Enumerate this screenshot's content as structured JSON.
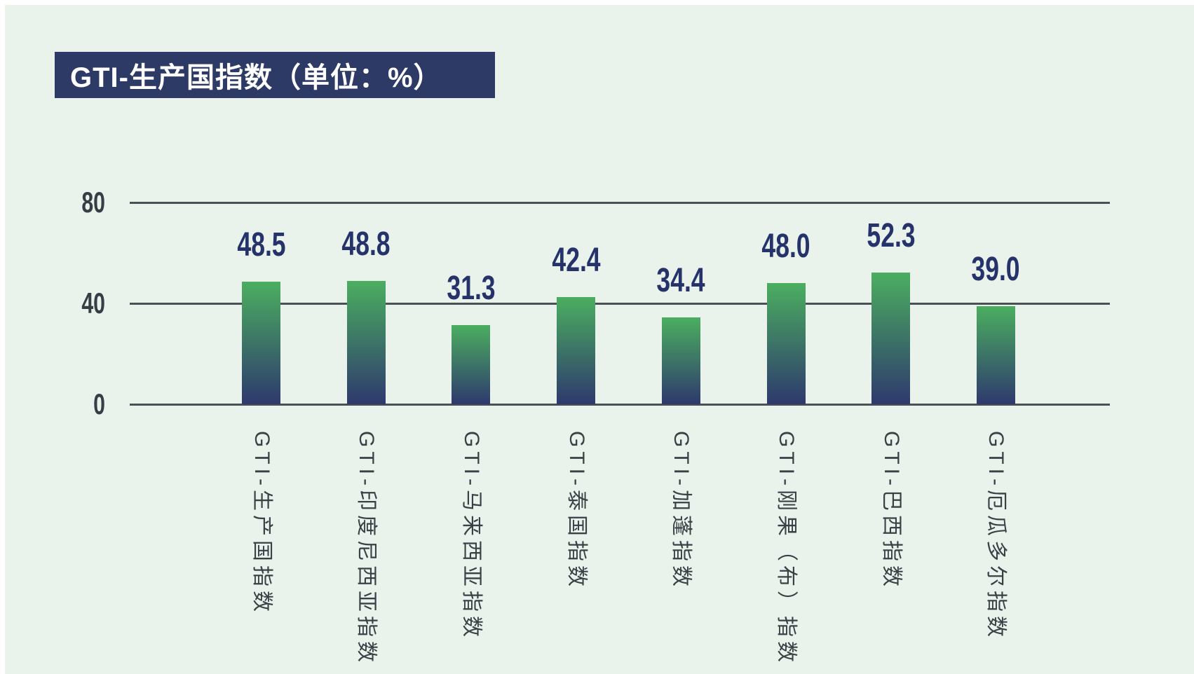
{
  "page": {
    "background": "#e9f3ec",
    "edge_color": "#ffffff"
  },
  "title": {
    "text": "GTI-生产国指数（单位：%）",
    "background": "#2d3a66",
    "color": "#ffffff"
  },
  "chart_data": {
    "type": "bar",
    "title": "GTI-生产国指数（单位：%）",
    "categories": [
      "GTI-生产国指数",
      "GTI-印度尼西亚指数",
      "GTI-马来西亚指数",
      "GTI-泰国指数",
      "GTI-加蓬指数",
      "GTI-刚果（布）指数",
      "GTI-巴西指数",
      "GTI-厄瓜多尔指数"
    ],
    "values": [
      48.5,
      48.8,
      31.3,
      42.4,
      34.4,
      48.0,
      52.3,
      39.0
    ],
    "value_labels": [
      "48.5",
      "48.8",
      "31.3",
      "42.4",
      "34.4",
      "48.0",
      "52.3",
      "39.0"
    ],
    "xlabel": "",
    "ylabel": "",
    "unit": "%",
    "ylim": [
      0,
      80
    ],
    "yticks": [
      0,
      40,
      80
    ],
    "grid": true,
    "legend": false,
    "bar_gradient_top": "#4bae60",
    "bar_gradient_bottom": "#2e396d",
    "gridline_color": "#4a5053",
    "value_label_color": "#26336b",
    "tick_label_color": "#363d45",
    "category_label_color": "#3a4046"
  }
}
